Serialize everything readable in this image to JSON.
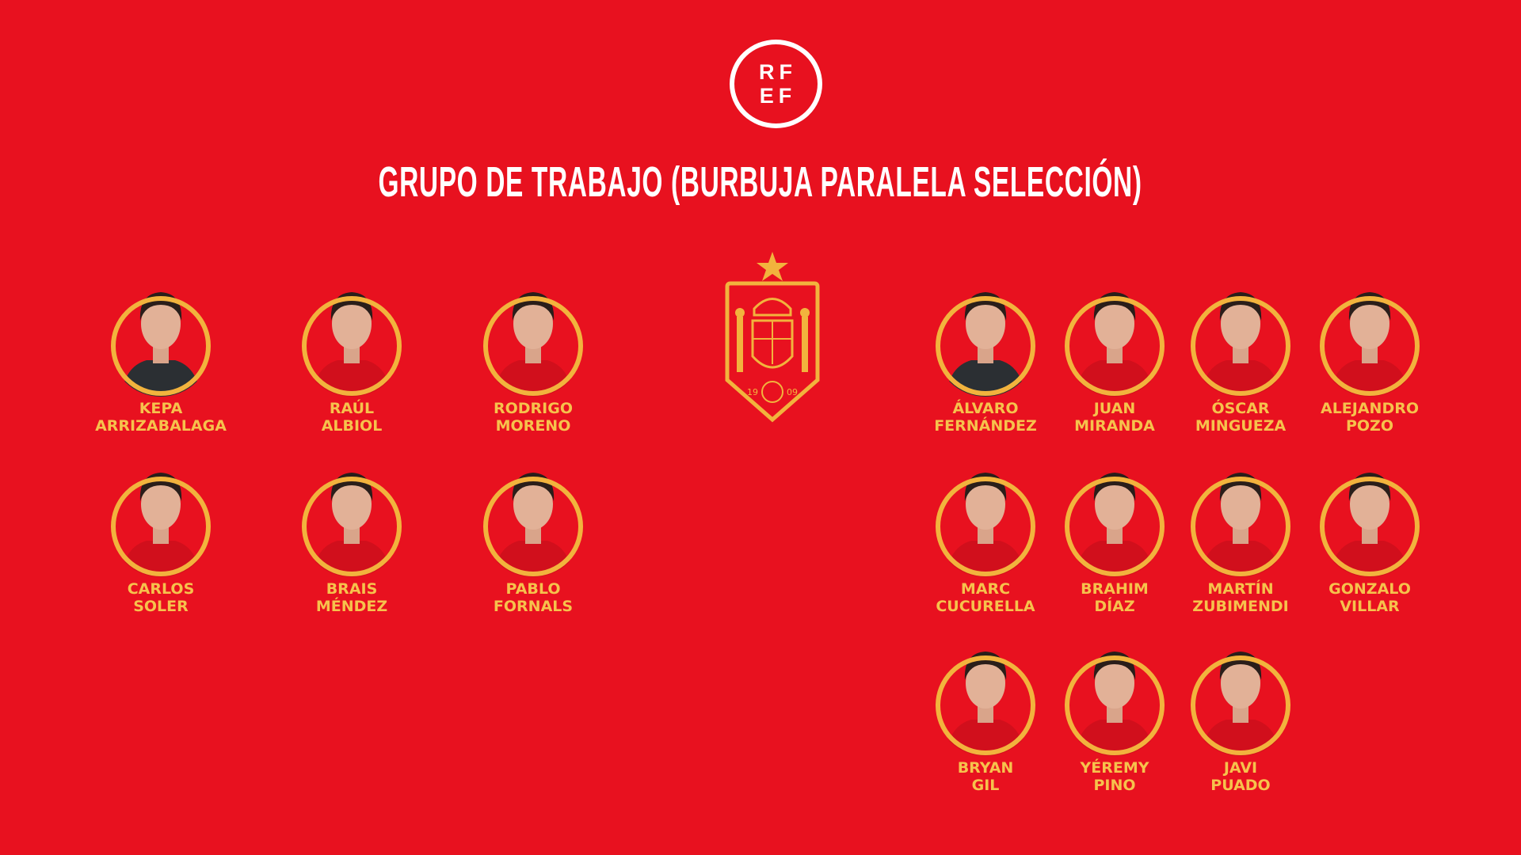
{
  "logo": {
    "line1": "RF",
    "line2": "EF"
  },
  "title": "GRUPO DE TRABAJO (BURBUJA PARALELA SELECCIÓN)",
  "crest": {
    "year_left": "19",
    "year_right": "09",
    "icon": "star-icon"
  },
  "colors": {
    "background": "#e8111f",
    "ring": "#f2b33d",
    "name": "#f6c24c",
    "white": "#ffffff"
  },
  "players_left": [
    {
      "first": "KEPA",
      "last": "ARRIZABALAGA",
      "kit": "goalkeeper"
    },
    {
      "first": "RAÚL",
      "last": "ALBIOL",
      "kit": "red"
    },
    {
      "first": "RODRIGO",
      "last": "MORENO",
      "kit": "red"
    },
    {
      "first": "CARLOS",
      "last": "SOLER",
      "kit": "red"
    },
    {
      "first": "BRAIS",
      "last": "MÉNDEZ",
      "kit": "red"
    },
    {
      "first": "PABLO",
      "last": "FORNALS",
      "kit": "red"
    }
  ],
  "players_right": [
    {
      "first": "ÁLVARO",
      "last": "FERNÁNDEZ",
      "kit": "goalkeeper"
    },
    {
      "first": "JUAN",
      "last": "MIRANDA",
      "kit": "red"
    },
    {
      "first": "ÓSCAR",
      "last": "MINGUEZA",
      "kit": "red"
    },
    {
      "first": "ALEJANDRO",
      "last": "POZO",
      "kit": "red"
    },
    {
      "first": "MARC",
      "last": "CUCURELLA",
      "kit": "red"
    },
    {
      "first": "BRAHIM",
      "last": "DÍAZ",
      "kit": "red"
    },
    {
      "first": "MARTÍN",
      "last": "ZUBIMENDI",
      "kit": "red"
    },
    {
      "first": "GONZALO",
      "last": "VILLAR",
      "kit": "red"
    },
    {
      "first": "BRYAN",
      "last": "GIL",
      "kit": "red"
    },
    {
      "first": "YÉREMY",
      "last": "PINO",
      "kit": "red"
    },
    {
      "first": "JAVI",
      "last": "PUADO",
      "kit": "red"
    }
  ]
}
